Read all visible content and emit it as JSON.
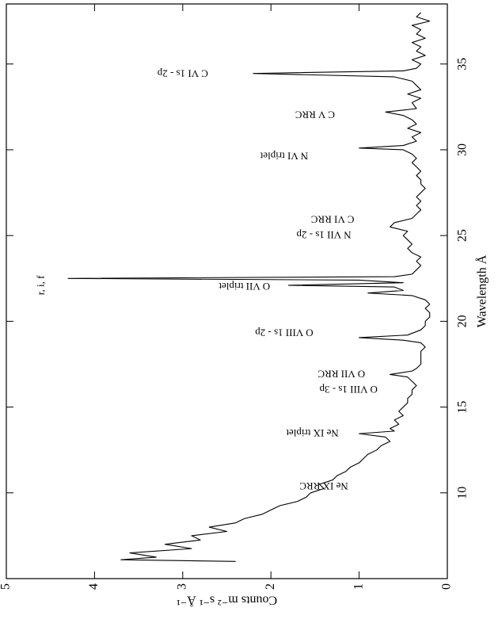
{
  "chart_data": {
    "type": "line",
    "xlabel": "Wavelength Å",
    "ylabel": "Counts m⁻² s⁻¹ Å⁻¹",
    "color": "#000000",
    "xlim": [
      5,
      38.5
    ],
    "ylim": [
      0,
      5
    ],
    "xticks": [
      10,
      15,
      20,
      25,
      30,
      35
    ],
    "yticks": [
      0,
      1,
      2,
      3,
      4,
      5
    ],
    "x": [
      6.0,
      6.1,
      6.25,
      6.5,
      6.75,
      7.0,
      7.25,
      7.5,
      7.75,
      8.0,
      8.25,
      8.5,
      8.75,
      9.0,
      9.25,
      9.5,
      9.75,
      10.0,
      10.25,
      10.5,
      10.75,
      11.0,
      11.25,
      11.5,
      11.75,
      12.0,
      12.25,
      12.5,
      12.75,
      13.0,
      13.25,
      13.45,
      13.6,
      13.75,
      14.0,
      14.25,
      14.5,
      14.75,
      15.0,
      15.25,
      15.5,
      15.75,
      16.0,
      16.25,
      16.5,
      16.75,
      16.9,
      17.1,
      17.25,
      17.5,
      17.75,
      18.0,
      18.25,
      18.5,
      18.75,
      18.9,
      19.05,
      19.2,
      19.5,
      19.75,
      20.0,
      20.25,
      20.5,
      20.75,
      21.0,
      21.25,
      21.5,
      21.65,
      21.8,
      22.0,
      22.1,
      22.25,
      22.4,
      22.5,
      22.6,
      22.75,
      23.0,
      23.25,
      23.5,
      23.75,
      24.0,
      24.25,
      24.5,
      24.75,
      25.0,
      25.25,
      25.5,
      25.75,
      26.0,
      26.25,
      26.5,
      26.75,
      27.0,
      27.25,
      27.5,
      27.75,
      28.0,
      28.25,
      28.5,
      28.75,
      29.0,
      29.25,
      29.5,
      29.75,
      30.0,
      30.1,
      30.25,
      30.5,
      30.75,
      31.0,
      31.25,
      31.5,
      31.75,
      32.0,
      32.2,
      32.4,
      32.75,
      33.0,
      33.25,
      33.5,
      33.75,
      34.0,
      34.25,
      34.45,
      34.6,
      34.75,
      35.0,
      35.25,
      35.5,
      35.75,
      36.0,
      36.25,
      36.5,
      36.75,
      37.0,
      37.25,
      37.5,
      37.75,
      38.0
    ],
    "values": [
      2.4,
      3.7,
      3.3,
      3.6,
      2.9,
      3.2,
      2.8,
      2.9,
      2.5,
      2.7,
      2.4,
      2.3,
      2.1,
      2.0,
      1.9,
      1.7,
      1.6,
      1.55,
      1.4,
      1.45,
      1.3,
      1.25,
      1.15,
      1.1,
      1.0,
      0.95,
      0.9,
      0.8,
      0.75,
      0.65,
      0.7,
      1.0,
      0.6,
      0.65,
      0.55,
      0.6,
      0.5,
      0.55,
      0.5,
      0.45,
      0.45,
      0.4,
      0.4,
      0.35,
      0.4,
      0.45,
      0.65,
      0.4,
      0.35,
      0.3,
      0.3,
      0.3,
      0.3,
      0.25,
      0.3,
      0.5,
      1.0,
      0.45,
      0.3,
      0.25,
      0.25,
      0.2,
      0.2,
      0.25,
      0.2,
      0.25,
      0.4,
      0.9,
      0.5,
      0.6,
      1.8,
      0.5,
      1.0,
      4.3,
      0.6,
      0.4,
      0.35,
      0.3,
      0.35,
      0.3,
      0.4,
      0.45,
      0.4,
      0.45,
      0.5,
      0.45,
      0.65,
      0.6,
      0.4,
      0.35,
      0.3,
      0.35,
      0.3,
      0.35,
      0.3,
      0.25,
      0.3,
      0.3,
      0.35,
      0.3,
      0.35,
      0.4,
      0.35,
      0.4,
      0.5,
      1.0,
      0.5,
      0.35,
      0.4,
      0.3,
      0.45,
      0.35,
      0.4,
      0.5,
      0.7,
      0.35,
      0.4,
      0.3,
      0.45,
      0.3,
      0.35,
      0.4,
      0.6,
      2.2,
      0.5,
      0.35,
      0.3,
      0.4,
      0.25,
      0.35,
      0.3,
      0.4,
      0.25,
      0.35,
      0.3,
      0.4,
      0.2,
      0.35,
      0.3
    ],
    "annotations": [
      {
        "text": "C VI 1s - 2p",
        "x": 34.5,
        "y": 3.0,
        "vertical": true
      },
      {
        "text": "C V RRC",
        "x": 32.1,
        "y": 1.5,
        "vertical": true
      },
      {
        "text": "N VI triplet",
        "x": 29.7,
        "y": 1.85,
        "vertical": true
      },
      {
        "text": "C VI RRC",
        "x": 26.0,
        "y": 1.3,
        "vertical": true
      },
      {
        "text": "N VII 1s - 2p",
        "x": 25.1,
        "y": 1.4,
        "vertical": true
      },
      {
        "text": "O VII triplet",
        "x": 22.1,
        "y": 2.3,
        "vertical": true
      },
      {
        "text": "r, i, f",
        "x": 22.1,
        "y": 4.6,
        "vertical": false
      },
      {
        "text": "O VIII 1s - 2p",
        "x": 19.4,
        "y": 1.85,
        "vertical": true
      },
      {
        "text": "O VII RRC",
        "x": 17.0,
        "y": 1.2,
        "vertical": true
      },
      {
        "text": "O VIII 1s - 3p",
        "x": 16.1,
        "y": 1.12,
        "vertical": true
      },
      {
        "text": "Ne IX triplet",
        "x": 13.55,
        "y": 1.53,
        "vertical": true
      },
      {
        "text": "Ne IX RRC",
        "x": 10.46,
        "y": 1.4,
        "vertical": true
      }
    ]
  }
}
